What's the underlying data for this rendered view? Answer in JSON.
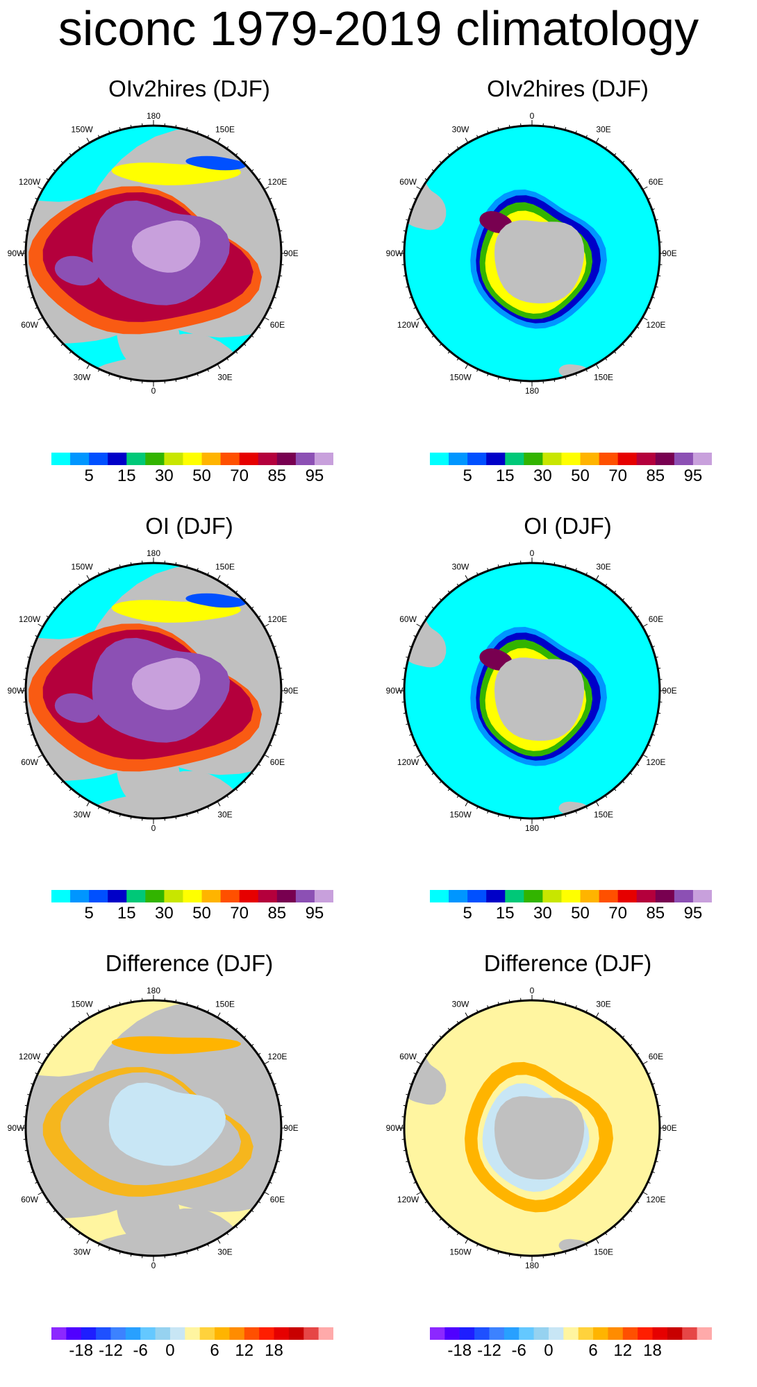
{
  "title": "siconc 1979-2019 climatology",
  "panels": [
    {
      "title": "OIv2hires (DJF)",
      "hemisphere": "north",
      "field": "conc",
      "colorbar": "conc"
    },
    {
      "title": "OIv2hires (DJF)",
      "hemisphere": "south",
      "field": "conc",
      "colorbar": "conc"
    },
    {
      "title": "OI (DJF)",
      "hemisphere": "north",
      "field": "conc",
      "colorbar": "conc"
    },
    {
      "title": "OI (DJF)",
      "hemisphere": "south",
      "field": "conc",
      "colorbar": "conc"
    },
    {
      "title": "Difference (DJF)",
      "hemisphere": "north",
      "field": "diff",
      "colorbar": "diff"
    },
    {
      "title": "Difference (DJF)",
      "hemisphere": "south",
      "field": "diff",
      "colorbar": "diff"
    }
  ],
  "lon_labels": {
    "north": [
      "180",
      "150E",
      "120E",
      "90E",
      "60E",
      "30E",
      "0",
      "30W",
      "60W",
      "90W",
      "120W",
      "150W"
    ],
    "south": [
      "0",
      "30E",
      "60E",
      "90E",
      "120E",
      "150E",
      "180",
      "150W",
      "120W",
      "90W",
      "60W",
      "30W"
    ]
  },
  "colorbars": {
    "conc": {
      "colors": [
        "#00ffff",
        "#0096ff",
        "#0050ff",
        "#0000c8",
        "#00c878",
        "#32b400",
        "#c8e600",
        "#ffff00",
        "#ffb400",
        "#ff5000",
        "#e60000",
        "#b4003c",
        "#780050",
        "#8c50b4",
        "#c8a0dc"
      ],
      "labels": [
        {
          "text": "5",
          "boundary": 1
        },
        {
          "text": "15",
          "boundary": 3
        },
        {
          "text": "30",
          "boundary": 5
        },
        {
          "text": "50",
          "boundary": 7
        },
        {
          "text": "70",
          "boundary": 9
        },
        {
          "text": "85",
          "boundary": 11
        },
        {
          "text": "95",
          "boundary": 13
        }
      ]
    },
    "diff": {
      "colors": [
        "#8c28ff",
        "#5000ff",
        "#1e1eff",
        "#1e50ff",
        "#3c82ff",
        "#28a0ff",
        "#64c8ff",
        "#96d2f0",
        "#c8e6f5",
        "#fff5a0",
        "#ffd23c",
        "#ffb400",
        "#ff8c00",
        "#ff5000",
        "#ff1e00",
        "#e60000",
        "#c80000",
        "#e64646",
        "#ffaaaa"
      ],
      "labels": [
        {
          "text": "-18",
          "boundary": 1
        },
        {
          "text": "-12",
          "boundary": 3
        },
        {
          "text": "-6",
          "boundary": 5
        },
        {
          "text": "0",
          "boundary": 7
        },
        {
          "text": "6",
          "boundary": 10
        },
        {
          "text": "12",
          "boundary": 12
        },
        {
          "text": "18",
          "boundary": 14
        }
      ]
    }
  },
  "colors": {
    "land": "#c0c0c0",
    "open_ocean_conc": "#00ffff",
    "open_ocean_diff": "#fff5a0"
  }
}
